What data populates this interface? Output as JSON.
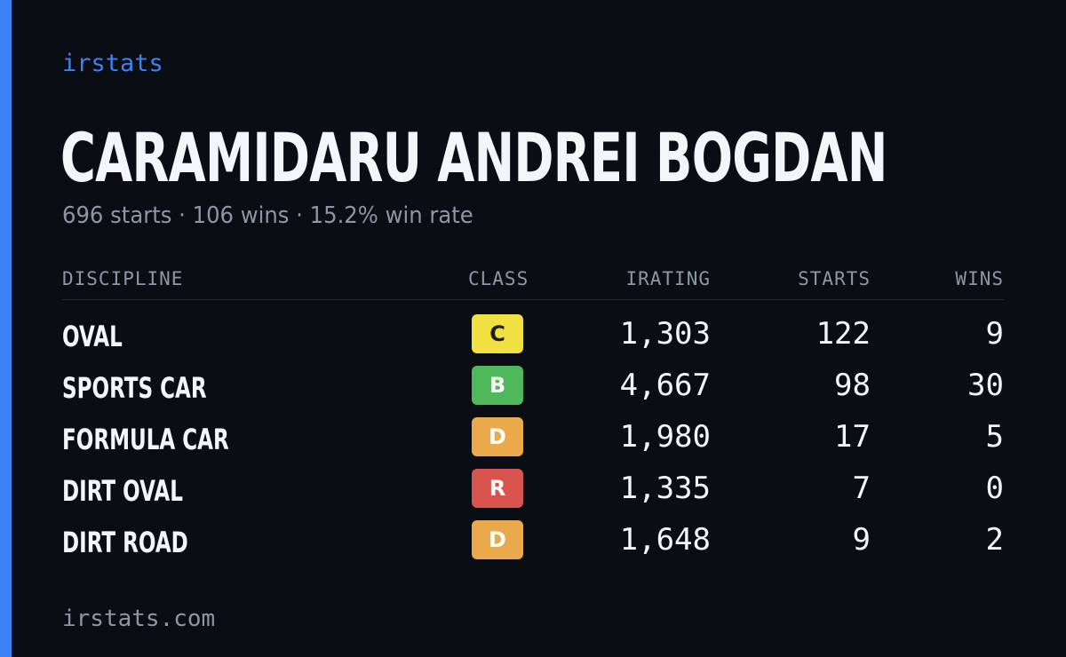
{
  "brand": "irstats",
  "driver": {
    "name": "CARAMIDARU ANDREI BOGDAN",
    "starts_text": "696 starts",
    "wins_text": "106 wins",
    "win_rate_text": "15.2% win rate",
    "separator": "·"
  },
  "table": {
    "headers": {
      "discipline": "DISCIPLINE",
      "class": "CLASS",
      "irating": "IRATING",
      "starts": "STARTS",
      "wins": "WINS"
    },
    "rows": [
      {
        "discipline": "OVAL",
        "class": "C",
        "class_color": "#f0e040",
        "irating": "1,303",
        "starts": "122",
        "wins": "9"
      },
      {
        "discipline": "SPORTS CAR",
        "class": "B",
        "class_color": "#4fb85a",
        "irating": "4,667",
        "starts": "98",
        "wins": "30"
      },
      {
        "discipline": "FORMULA CAR",
        "class": "D",
        "class_color": "#eaa94a",
        "irating": "1,980",
        "starts": "17",
        "wins": "5"
      },
      {
        "discipline": "DIRT OVAL",
        "class": "R",
        "class_color": "#d9534f",
        "irating": "1,335",
        "starts": "7",
        "wins": "0"
      },
      {
        "discipline": "DIRT ROAD",
        "class": "D",
        "class_color": "#eaa94a",
        "irating": "1,648",
        "starts": "9",
        "wins": "2"
      }
    ]
  },
  "footer": "irstats.com",
  "colors": {
    "background": "#0b0d14",
    "accent": "#3b82f6",
    "muted_text": "#8d96a6",
    "primary_text": "#f4f5f8"
  }
}
